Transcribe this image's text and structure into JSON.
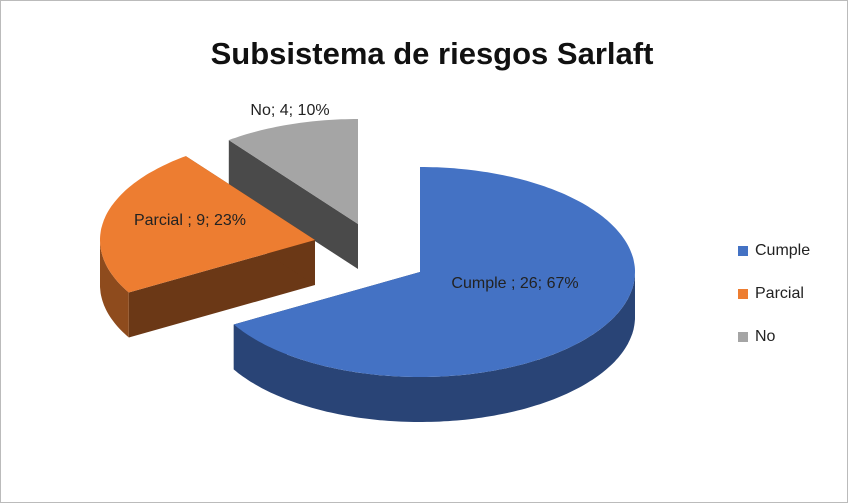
{
  "chart_data": {
    "type": "pie3d",
    "title": "Subsistema de riesgos Sarlaft",
    "categories": [
      "Cumple",
      "Parcial",
      "No"
    ],
    "values": [
      26,
      9,
      4
    ],
    "value_labels": [
      "Cumple ; 26; 67%",
      "Parcial ; 9; 23%",
      "No; 4; 10%"
    ],
    "colors": [
      "#4472c4",
      "#ed7d31",
      "#a5a5a5"
    ],
    "legend": "right"
  }
}
